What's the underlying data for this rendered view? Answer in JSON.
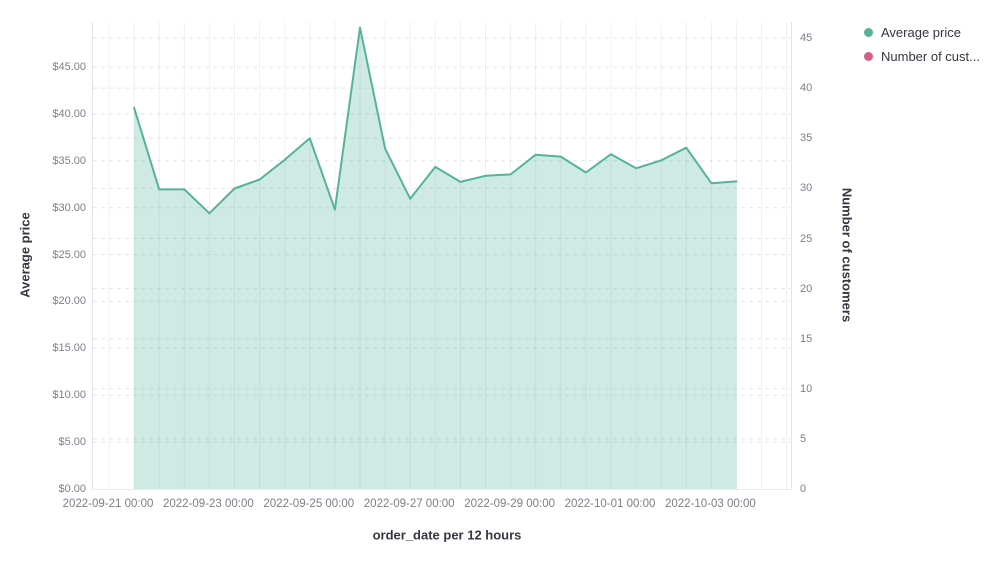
{
  "page": {
    "background": "#ffffff"
  },
  "legend": {
    "items": [
      {
        "label": "Average price",
        "color": "#54B399"
      },
      {
        "label": "Number of cust...",
        "color": "#D36086"
      }
    ]
  },
  "chart_data": {
    "type": "area",
    "title": "",
    "grid": true,
    "legend_position": "top-right",
    "x_axis": {
      "title": "order_date per 12 hours",
      "tick_labels": [
        "2022-09-21 00:00",
        "2022-09-23 00:00",
        "2022-09-25 00:00",
        "2022-09-27 00:00",
        "2022-09-29 00:00",
        "2022-10-01 00:00",
        "2022-10-03 00:00"
      ]
    },
    "y_left": {
      "title": "Average price",
      "tick_values": [
        0,
        5,
        10,
        15,
        20,
        25,
        30,
        35,
        40,
        45
      ],
      "tick_labels": [
        "$0.00",
        "$5.00",
        "$10.00",
        "$15.00",
        "$20.00",
        "$25.00",
        "$30.00",
        "$35.00",
        "$40.00",
        "$45.00"
      ],
      "range": [
        0,
        49.8
      ]
    },
    "y_right": {
      "title": "Number of customers",
      "tick_values": [
        0,
        5,
        10,
        15,
        20,
        25,
        30,
        35,
        40,
        45
      ],
      "tick_labels": [
        "0",
        "5",
        "10",
        "15",
        "20",
        "25",
        "30",
        "35",
        "40",
        "45"
      ],
      "range": [
        0,
        46.6
      ]
    },
    "x": [
      "2022-09-21 12:00",
      "2022-09-22 00:00",
      "2022-09-22 12:00",
      "2022-09-23 00:00",
      "2022-09-23 12:00",
      "2022-09-24 00:00",
      "2022-09-24 12:00",
      "2022-09-25 00:00",
      "2022-09-25 12:00",
      "2022-09-26 00:00",
      "2022-09-26 12:00",
      "2022-09-27 00:00",
      "2022-09-27 12:00",
      "2022-09-28 00:00",
      "2022-09-28 12:00",
      "2022-09-29 00:00",
      "2022-09-29 12:00",
      "2022-09-30 00:00",
      "2022-09-30 12:00",
      "2022-10-01 00:00",
      "2022-10-01 12:00",
      "2022-10-02 00:00",
      "2022-10-02 12:00",
      "2022-10-03 00:00",
      "2022-10-03 12:00"
    ],
    "series": [
      {
        "name": "Average price",
        "axis": "left",
        "color": "#54B399",
        "fill_opacity": 0.28,
        "values": [
          40.65,
          31.95,
          31.95,
          29.4,
          32.05,
          33.0,
          35.1,
          37.4,
          29.8,
          49.2,
          36.3,
          30.95,
          34.35,
          32.75,
          33.4,
          33.55,
          35.65,
          35.45,
          33.75,
          35.7,
          34.2,
          35.05,
          36.4,
          32.6,
          32.8
        ]
      },
      {
        "name": "Number of customers",
        "axis": "right",
        "color": "#D36086",
        "values": []
      }
    ]
  }
}
